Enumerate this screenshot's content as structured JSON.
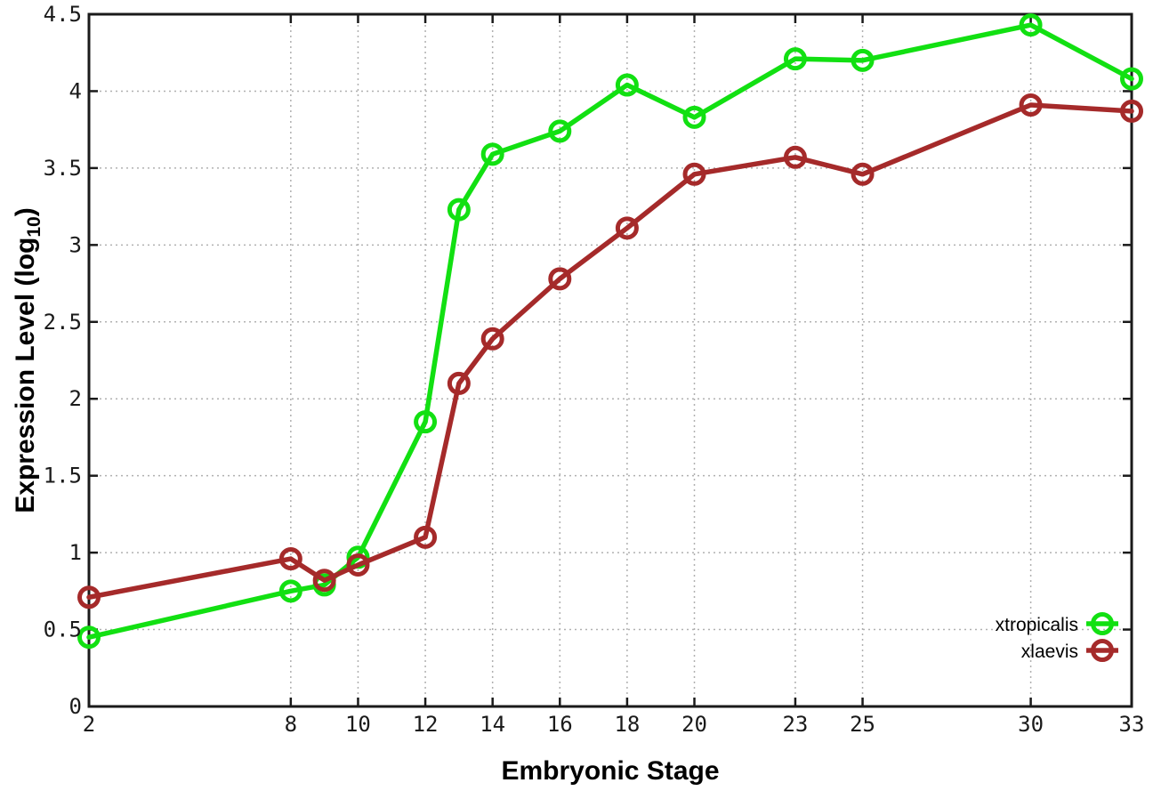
{
  "figure": {
    "title": "",
    "xlabel": "Embryonic Stage",
    "ylabel": "Expression Level (log10)",
    "ylabel_parts": {
      "pre": "Expression Level (log",
      "sub": "10",
      "post": ")"
    }
  },
  "chart_data": {
    "type": "line",
    "title": "",
    "xlabel": "Embryonic Stage",
    "ylabel": "Expression Level (log10)",
    "xlim": [
      2,
      33
    ],
    "ylim": [
      0,
      4.5
    ],
    "x_ticks": [
      2,
      8,
      10,
      12,
      14,
      16,
      18,
      20,
      23,
      25,
      30,
      33
    ],
    "x_tick_labels": [
      "2",
      "8",
      "10",
      "12",
      "14",
      "16",
      "18",
      "20",
      "23",
      "25",
      "30",
      "33"
    ],
    "y_ticks": [
      0,
      0.5,
      1,
      1.5,
      2,
      2.5,
      3,
      3.5,
      4,
      4.5
    ],
    "y_tick_labels": [
      "0",
      "0.5",
      "1",
      "1.5",
      "2",
      "2.5",
      "3",
      "3.5",
      "4",
      "4.5"
    ],
    "grid": true,
    "grid_style": "dotted",
    "legend_position": "bottom-right-inside",
    "x": [
      2,
      8,
      9,
      10,
      12,
      13,
      14,
      16,
      18,
      20,
      23,
      25,
      30,
      33
    ],
    "series": [
      {
        "name": "xtropicalis",
        "color": "#12e012",
        "marker": "open-circle",
        "values": [
          0.45,
          0.75,
          0.79,
          0.97,
          1.85,
          3.23,
          3.59,
          3.74,
          4.04,
          3.83,
          4.21,
          4.2,
          4.43,
          4.08
        ]
      },
      {
        "name": "xlaevis",
        "color": "#a52a2a",
        "marker": "open-circle",
        "values": [
          0.71,
          0.96,
          0.82,
          0.92,
          1.1,
          2.1,
          2.39,
          2.78,
          3.11,
          3.46,
          3.57,
          3.46,
          3.91,
          3.87
        ]
      }
    ],
    "colors": {
      "border": "#1a1a1a",
      "gridline": "#b0b0b0",
      "text": "#000000"
    }
  }
}
